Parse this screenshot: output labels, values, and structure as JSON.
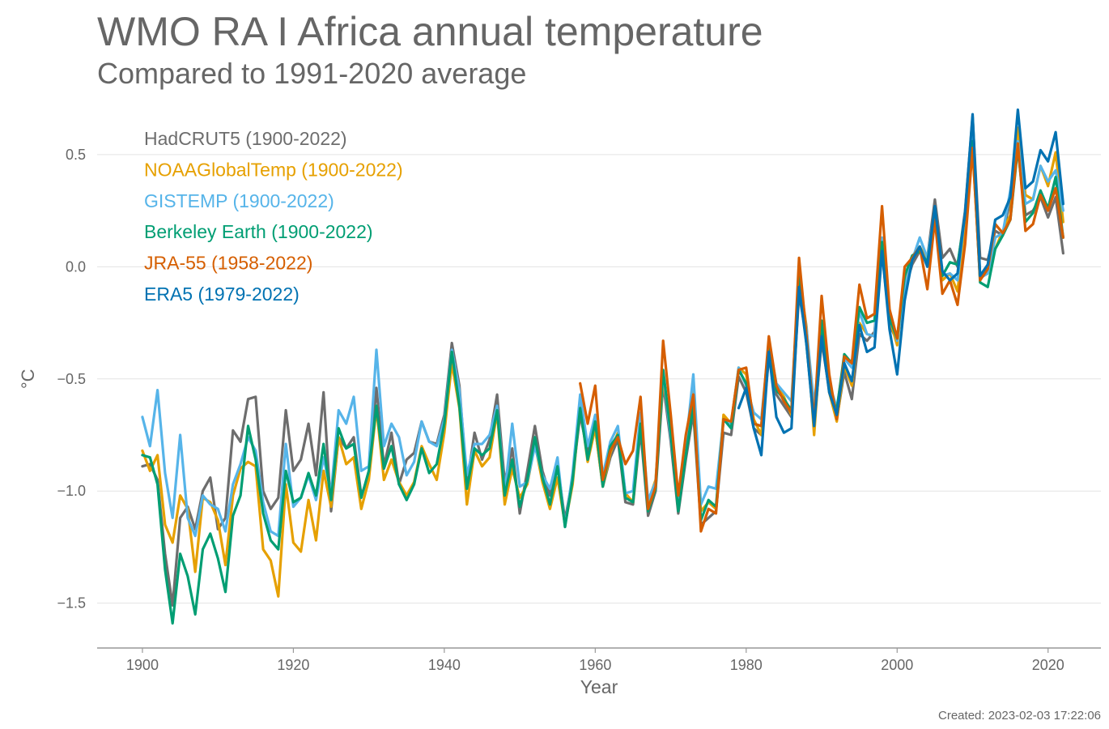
{
  "title": "WMO RA I Africa annual temperature",
  "subtitle": "Compared to 1991-2020 average",
  "created": "Created: 2023-02-03 17:22:06",
  "chart_data": {
    "type": "line",
    "xlabel": "Year",
    "ylabel": "°C",
    "xlim": [
      1894,
      2027
    ],
    "ylim": [
      -1.7,
      0.72
    ],
    "xticks": [
      1900,
      1920,
      1940,
      1960,
      1980,
      2000,
      2020
    ],
    "yticks": [
      0.5,
      0.0,
      -0.5,
      -1.0,
      -1.5
    ],
    "ytick_labels": [
      "0.5",
      "0.0",
      "−0.5",
      "−1.0",
      "−1.5"
    ],
    "grid": "horizontal",
    "legend_position": "top-left",
    "series": [
      {
        "name": "HadCRUT5 (1900-2022)",
        "color": "#6d6d6d",
        "start": 1900,
        "values": [
          -0.89,
          -0.88,
          -0.95,
          -1.28,
          -1.51,
          -1.12,
          -1.07,
          -1.17,
          -1.0,
          -0.94,
          -1.17,
          -1.12,
          -0.73,
          -0.78,
          -0.59,
          -0.58,
          -1.0,
          -1.08,
          -1.03,
          -0.64,
          -0.91,
          -0.86,
          -0.7,
          -0.93,
          -0.56,
          -1.09,
          -0.76,
          -0.81,
          -0.76,
          -1.02,
          -0.93,
          -0.54,
          -0.89,
          -0.74,
          -0.97,
          -0.86,
          -0.83,
          -0.69,
          -0.78,
          -0.79,
          -0.66,
          -0.34,
          -0.53,
          -0.97,
          -0.74,
          -0.86,
          -0.77,
          -0.57,
          -0.96,
          -0.81,
          -1.1,
          -0.91,
          -0.71,
          -0.91,
          -1.02,
          -0.88,
          -1.13,
          -0.94,
          -0.66,
          -0.83,
          -0.72,
          -0.98,
          -0.85,
          -0.77,
          -1.05,
          -1.06,
          -0.73,
          -1.11,
          -1.0,
          -0.52,
          -0.78,
          -1.1,
          -0.86,
          -0.65,
          -1.15,
          -1.12,
          -1.09,
          -0.74,
          -0.75,
          -0.49,
          -0.56,
          -0.72,
          -0.75,
          -0.41,
          -0.57,
          -0.62,
          -0.67,
          -0.12,
          -0.32,
          -0.71,
          -0.33,
          -0.55,
          -0.68,
          -0.47,
          -0.59,
          -0.3,
          -0.33,
          -0.29,
          0.07,
          -0.26,
          -0.33,
          -0.1,
          0.01,
          0.07,
          0.04,
          0.3,
          0.04,
          0.08,
          0.0,
          0.25,
          0.67,
          0.04,
          0.03,
          0.16,
          0.14,
          0.3,
          0.57,
          0.23,
          0.25,
          0.31,
          0.22,
          0.31,
          0.06
        ]
      },
      {
        "name": "NOAAGlobalTemp (1900-2022)",
        "color": "#e6a000",
        "start": 1900,
        "values": [
          -0.82,
          -0.91,
          -0.84,
          -1.15,
          -1.23,
          -1.02,
          -1.08,
          -1.36,
          -1.03,
          -1.05,
          -1.13,
          -1.33,
          -1.02,
          -0.9,
          -0.87,
          -0.89,
          -1.26,
          -1.31,
          -1.47,
          -0.97,
          -1.23,
          -1.27,
          -1.04,
          -1.22,
          -0.91,
          -1.07,
          -0.76,
          -0.88,
          -0.85,
          -1.08,
          -0.95,
          -0.63,
          -0.95,
          -0.86,
          -0.96,
          -1.02,
          -0.96,
          -0.8,
          -0.88,
          -0.95,
          -0.74,
          -0.43,
          -0.63,
          -1.06,
          -0.82,
          -0.89,
          -0.85,
          -0.65,
          -1.06,
          -0.9,
          -1.03,
          -0.97,
          -0.79,
          -0.96,
          -1.08,
          -0.94,
          -1.15,
          -0.97,
          -0.62,
          -0.87,
          -0.72,
          -0.98,
          -0.83,
          -0.74,
          -1.01,
          -1.05,
          -0.7,
          -1.05,
          -0.95,
          -0.5,
          -0.72,
          -1.08,
          -0.83,
          -0.55,
          -1.09,
          -1.05,
          -1.08,
          -0.66,
          -0.7,
          -0.45,
          -0.48,
          -0.68,
          -0.75,
          -0.36,
          -0.53,
          -0.58,
          -0.66,
          -0.04,
          -0.27,
          -0.75,
          -0.28,
          -0.56,
          -0.69,
          -0.44,
          -0.53,
          -0.25,
          -0.3,
          -0.31,
          0.11,
          -0.23,
          -0.35,
          -0.06,
          0.04,
          0.09,
          0.03,
          0.24,
          -0.06,
          -0.03,
          -0.11,
          0.2,
          0.52,
          -0.04,
          -0.01,
          0.08,
          0.16,
          0.23,
          0.62,
          0.32,
          0.3,
          0.45,
          0.36,
          0.51,
          0.2
        ]
      },
      {
        "name": "GISTEMP (1900-2022)",
        "color": "#56b4e9",
        "start": 1900,
        "values": [
          -0.67,
          -0.8,
          -0.55,
          -0.92,
          -1.12,
          -0.75,
          -1.12,
          -1.2,
          -1.02,
          -1.06,
          -1.08,
          -1.18,
          -0.97,
          -0.88,
          -0.76,
          -0.82,
          -1.05,
          -1.18,
          -1.2,
          -0.79,
          -1.07,
          -1.03,
          -0.93,
          -1.04,
          -0.85,
          -1.01,
          -0.64,
          -0.7,
          -0.58,
          -0.91,
          -0.89,
          -0.37,
          -0.8,
          -0.7,
          -0.76,
          -0.93,
          -0.87,
          -0.69,
          -0.78,
          -0.8,
          -0.68,
          -0.37,
          -0.55,
          -0.93,
          -0.79,
          -0.79,
          -0.75,
          -0.62,
          -1.01,
          -0.7,
          -0.98,
          -0.96,
          -0.8,
          -0.93,
          -0.99,
          -0.85,
          -1.16,
          -0.92,
          -0.57,
          -0.8,
          -0.66,
          -0.93,
          -0.78,
          -0.71,
          -1.01,
          -1.0,
          -0.65,
          -1.04,
          -0.96,
          -0.47,
          -0.76,
          -1.04,
          -0.8,
          -0.48,
          -1.06,
          -0.98,
          -0.99,
          -0.68,
          -0.7,
          -0.45,
          -0.53,
          -0.65,
          -0.68,
          -0.34,
          -0.52,
          -0.56,
          -0.6,
          -0.05,
          -0.28,
          -0.62,
          -0.29,
          -0.52,
          -0.63,
          -0.41,
          -0.45,
          -0.2,
          -0.3,
          -0.31,
          0.13,
          -0.2,
          -0.33,
          -0.09,
          0.03,
          0.13,
          0.04,
          0.25,
          -0.04,
          -0.03,
          -0.06,
          0.24,
          0.61,
          -0.05,
          -0.03,
          0.13,
          0.15,
          0.34,
          0.56,
          0.28,
          0.3,
          0.45,
          0.38,
          0.43,
          0.25
        ]
      },
      {
        "name": "Berkeley Earth (1900-2022)",
        "color": "#009e73",
        "start": 1900,
        "values": [
          -0.84,
          -0.85,
          -0.97,
          -1.35,
          -1.59,
          -1.28,
          -1.38,
          -1.55,
          -1.26,
          -1.19,
          -1.3,
          -1.45,
          -1.11,
          -1.02,
          -0.71,
          -0.86,
          -1.1,
          -1.22,
          -1.26,
          -0.91,
          -1.05,
          -1.03,
          -0.92,
          -1.02,
          -0.79,
          -1.04,
          -0.72,
          -0.81,
          -0.79,
          -1.03,
          -0.91,
          -0.62,
          -0.9,
          -0.8,
          -0.97,
          -1.04,
          -0.97,
          -0.81,
          -0.92,
          -0.88,
          -0.7,
          -0.38,
          -0.62,
          -0.99,
          -0.81,
          -0.84,
          -0.81,
          -0.64,
          -1.02,
          -0.86,
          -1.07,
          -0.95,
          -0.76,
          -0.94,
          -1.06,
          -0.89,
          -1.16,
          -0.95,
          -0.63,
          -0.86,
          -0.69,
          -0.98,
          -0.8,
          -0.75,
          -1.03,
          -1.05,
          -0.7,
          -1.09,
          -0.99,
          -0.46,
          -0.74,
          -1.09,
          -0.84,
          -0.62,
          -1.13,
          -1.04,
          -1.07,
          -0.68,
          -0.72,
          -0.46,
          -0.52,
          -0.7,
          -0.71,
          -0.34,
          -0.55,
          -0.59,
          -0.64,
          -0.02,
          -0.35,
          -0.7,
          -0.24,
          -0.55,
          -0.64,
          -0.39,
          -0.43,
          -0.18,
          -0.25,
          -0.24,
          0.11,
          -0.23,
          -0.32,
          -0.04,
          0.05,
          0.07,
          0.02,
          0.24,
          -0.04,
          0.02,
          0.01,
          0.23,
          0.56,
          -0.07,
          -0.09,
          0.08,
          0.14,
          0.21,
          0.53,
          0.2,
          0.24,
          0.34,
          0.26,
          0.4,
          0.13
        ]
      },
      {
        "name": "JRA-55 (1958-2022)",
        "color": "#d55e00",
        "start": 1958,
        "values": [
          -0.52,
          -0.7,
          -0.53,
          -0.95,
          -0.82,
          -0.76,
          -0.88,
          -0.82,
          -0.58,
          -1.08,
          -0.98,
          -0.33,
          -0.66,
          -1.02,
          -0.75,
          -0.57,
          -1.18,
          -1.08,
          -1.1,
          -0.68,
          -0.69,
          -0.46,
          -0.45,
          -0.7,
          -0.71,
          -0.31,
          -0.53,
          -0.6,
          -0.65,
          0.04,
          -0.31,
          -0.69,
          -0.13,
          -0.48,
          -0.68,
          -0.4,
          -0.43,
          -0.08,
          -0.23,
          -0.21,
          0.27,
          -0.19,
          -0.32,
          0.0,
          0.04,
          0.09,
          -0.1,
          0.21,
          -0.12,
          -0.06,
          -0.17,
          0.1,
          0.53,
          -0.06,
          -0.01,
          0.19,
          0.15,
          0.21,
          0.55,
          0.16,
          0.19,
          0.32,
          0.25,
          0.35,
          0.13
        ]
      },
      {
        "name": "ERA5 (1979-2022)",
        "color": "#0072b2",
        "start": 1979,
        "values": [
          -0.63,
          -0.54,
          -0.72,
          -0.84,
          -0.38,
          -0.67,
          -0.74,
          -0.72,
          -0.09,
          -0.35,
          -0.71,
          -0.31,
          -0.56,
          -0.66,
          -0.43,
          -0.51,
          -0.26,
          -0.38,
          -0.36,
          0.07,
          -0.28,
          -0.48,
          -0.15,
          0.03,
          0.09,
          0.0,
          0.27,
          -0.02,
          -0.06,
          -0.03,
          0.24,
          0.68,
          -0.04,
          0.01,
          0.21,
          0.23,
          0.31,
          0.7,
          0.35,
          0.38,
          0.52,
          0.47,
          0.6,
          0.28
        ]
      }
    ]
  }
}
